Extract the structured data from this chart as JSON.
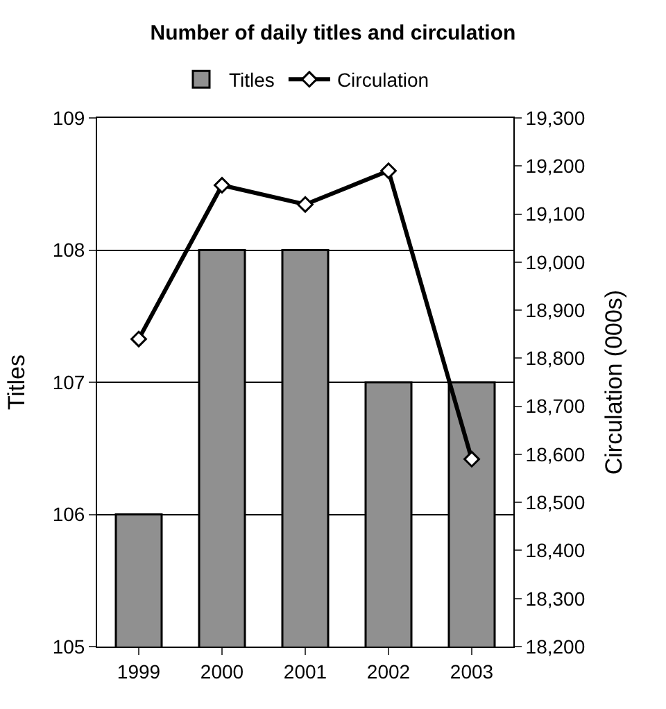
{
  "chart_data": {
    "type": "bar",
    "title": "Number of daily titles and circulation",
    "ylabel": "Titles",
    "y2label": "Circulation (000s)",
    "categories": [
      "1999",
      "2000",
      "2001",
      "2002",
      "2003"
    ],
    "series": [
      {
        "name": "Titles",
        "color": "#909090",
        "values": [
          106,
          108,
          108,
          107,
          107
        ]
      },
      {
        "name": "Circulation",
        "type": "line",
        "axis": "y2",
        "color": "#000000",
        "marker": "diamond",
        "values": [
          18840,
          19160,
          19120,
          19190,
          18590
        ]
      }
    ],
    "ylim": [
      105,
      109
    ],
    "yticks": [
      105,
      106,
      107,
      108,
      109
    ],
    "y2lim": [
      18200,
      19300
    ],
    "y2ticks": [
      {
        "value": 18200,
        "label": "18,200"
      },
      {
        "value": 18300,
        "label": "18,300"
      },
      {
        "value": 18400,
        "label": "18,400"
      },
      {
        "value": 18500,
        "label": "18,500"
      },
      {
        "value": 18600,
        "label": "18,600"
      },
      {
        "value": 18700,
        "label": "18,700"
      },
      {
        "value": 18800,
        "label": "18,800"
      },
      {
        "value": 18900,
        "label": "18,900"
      },
      {
        "value": 19000,
        "label": "19,000"
      },
      {
        "value": 19100,
        "label": "19,100"
      },
      {
        "value": 19200,
        "label": "19,200"
      },
      {
        "value": 19300,
        "label": "19,300"
      }
    ],
    "grid": "y",
    "legend": "top"
  }
}
